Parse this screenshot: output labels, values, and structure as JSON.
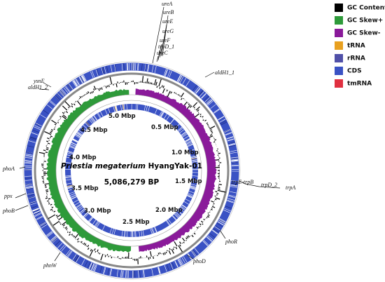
{
  "legend": {
    "items": [
      {
        "label": "GC Content",
        "color": "#000000"
      },
      {
        "label": "GC Skew+",
        "color": "#2e9a3a"
      },
      {
        "label": "GC Skew-",
        "color": "#8a1a9a"
      },
      {
        "label": "tRNA",
        "color": "#e8a020"
      },
      {
        "label": "rRNA",
        "color": "#5050a8"
      },
      {
        "label": "CDS",
        "color": "#3a52c4"
      },
      {
        "label": "tmRNA",
        "color": "#e03040"
      }
    ]
  },
  "center": {
    "species": "Priestia megaterium",
    "strain": "HyangYak-01",
    "size": "5,086,279 BP"
  },
  "scale_labels": [
    "0.5 Mbp",
    "1.0 Mbp",
    "1.5 Mbp",
    "2.0 Mbp",
    "2.5 Mbp",
    "3.0 Mbp",
    "3.5 Mbp",
    "4.0 Mbp",
    "4.5 Mbp",
    "5.0 Mbp"
  ],
  "genes": [
    "ureA",
    "ureB",
    "ureE",
    "ureG",
    "ureF",
    "trpD_1",
    "ureC",
    "aldH1_1",
    "ysnE",
    "aldH1_2",
    "phoA",
    "ppx",
    "phoB",
    "phnW",
    "phoD",
    "phoR",
    "trpE-trpB",
    "trpD_2",
    "trpA"
  ]
}
